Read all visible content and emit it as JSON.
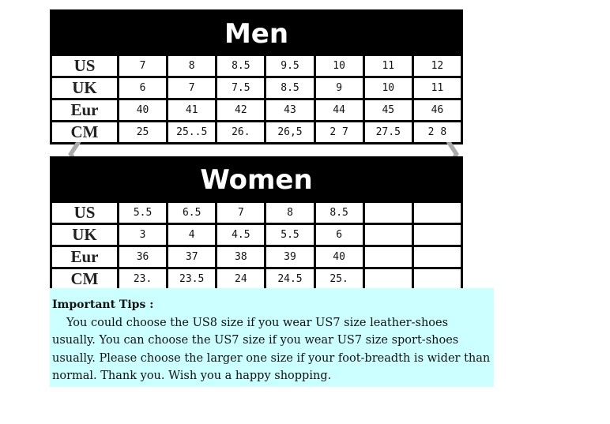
{
  "men": {
    "title": "Men",
    "rows": [
      {
        "label": "US",
        "values": [
          "7",
          "8",
          "8.5",
          "9.5",
          "10",
          "11",
          "12"
        ]
      },
      {
        "label": "UK",
        "values": [
          "6",
          "7",
          "7.5",
          "8.5",
          "9",
          "10",
          "11"
        ]
      },
      {
        "label": "Eur",
        "values": [
          "40",
          "41",
          "42",
          "43",
          "44",
          "45",
          "46"
        ]
      },
      {
        "label": "CM",
        "values": [
          "25",
          "25..5",
          "26.",
          "26,5",
          "2 7",
          "27.5",
          "2 8"
        ]
      }
    ]
  },
  "women": {
    "title": "Women",
    "rows": [
      {
        "label": "US",
        "values": [
          "5.5",
          "6.5",
          "7",
          "8",
          "8.5",
          "",
          ""
        ]
      },
      {
        "label": "UK",
        "values": [
          "3",
          "4",
          "4.5",
          "5.5",
          "6",
          "",
          ""
        ]
      },
      {
        "label": "Eur",
        "values": [
          "36",
          "37",
          "38",
          "39",
          "40",
          "",
          ""
        ]
      },
      {
        "label": "CM",
        "values": [
          "23.",
          "23.5",
          "24",
          "24.5",
          "25.",
          "",
          ""
        ]
      }
    ]
  },
  "tips": {
    "title": "Important Tips :",
    "body": "You could choose the US8 size if you wear US7 size leather-shoes usually. You can choose the US7 size if you wear US7 size sport-shoes usually. Please choose the larger one size if your foot-breadth is wider than normal. Thank you. Wish you a happy shopping."
  },
  "colors": {
    "tips_bg": "#ccffff",
    "header_bg": "#000000"
  },
  "icons": {
    "prev": "chevron-left-icon",
    "next": "chevron-right-icon"
  }
}
